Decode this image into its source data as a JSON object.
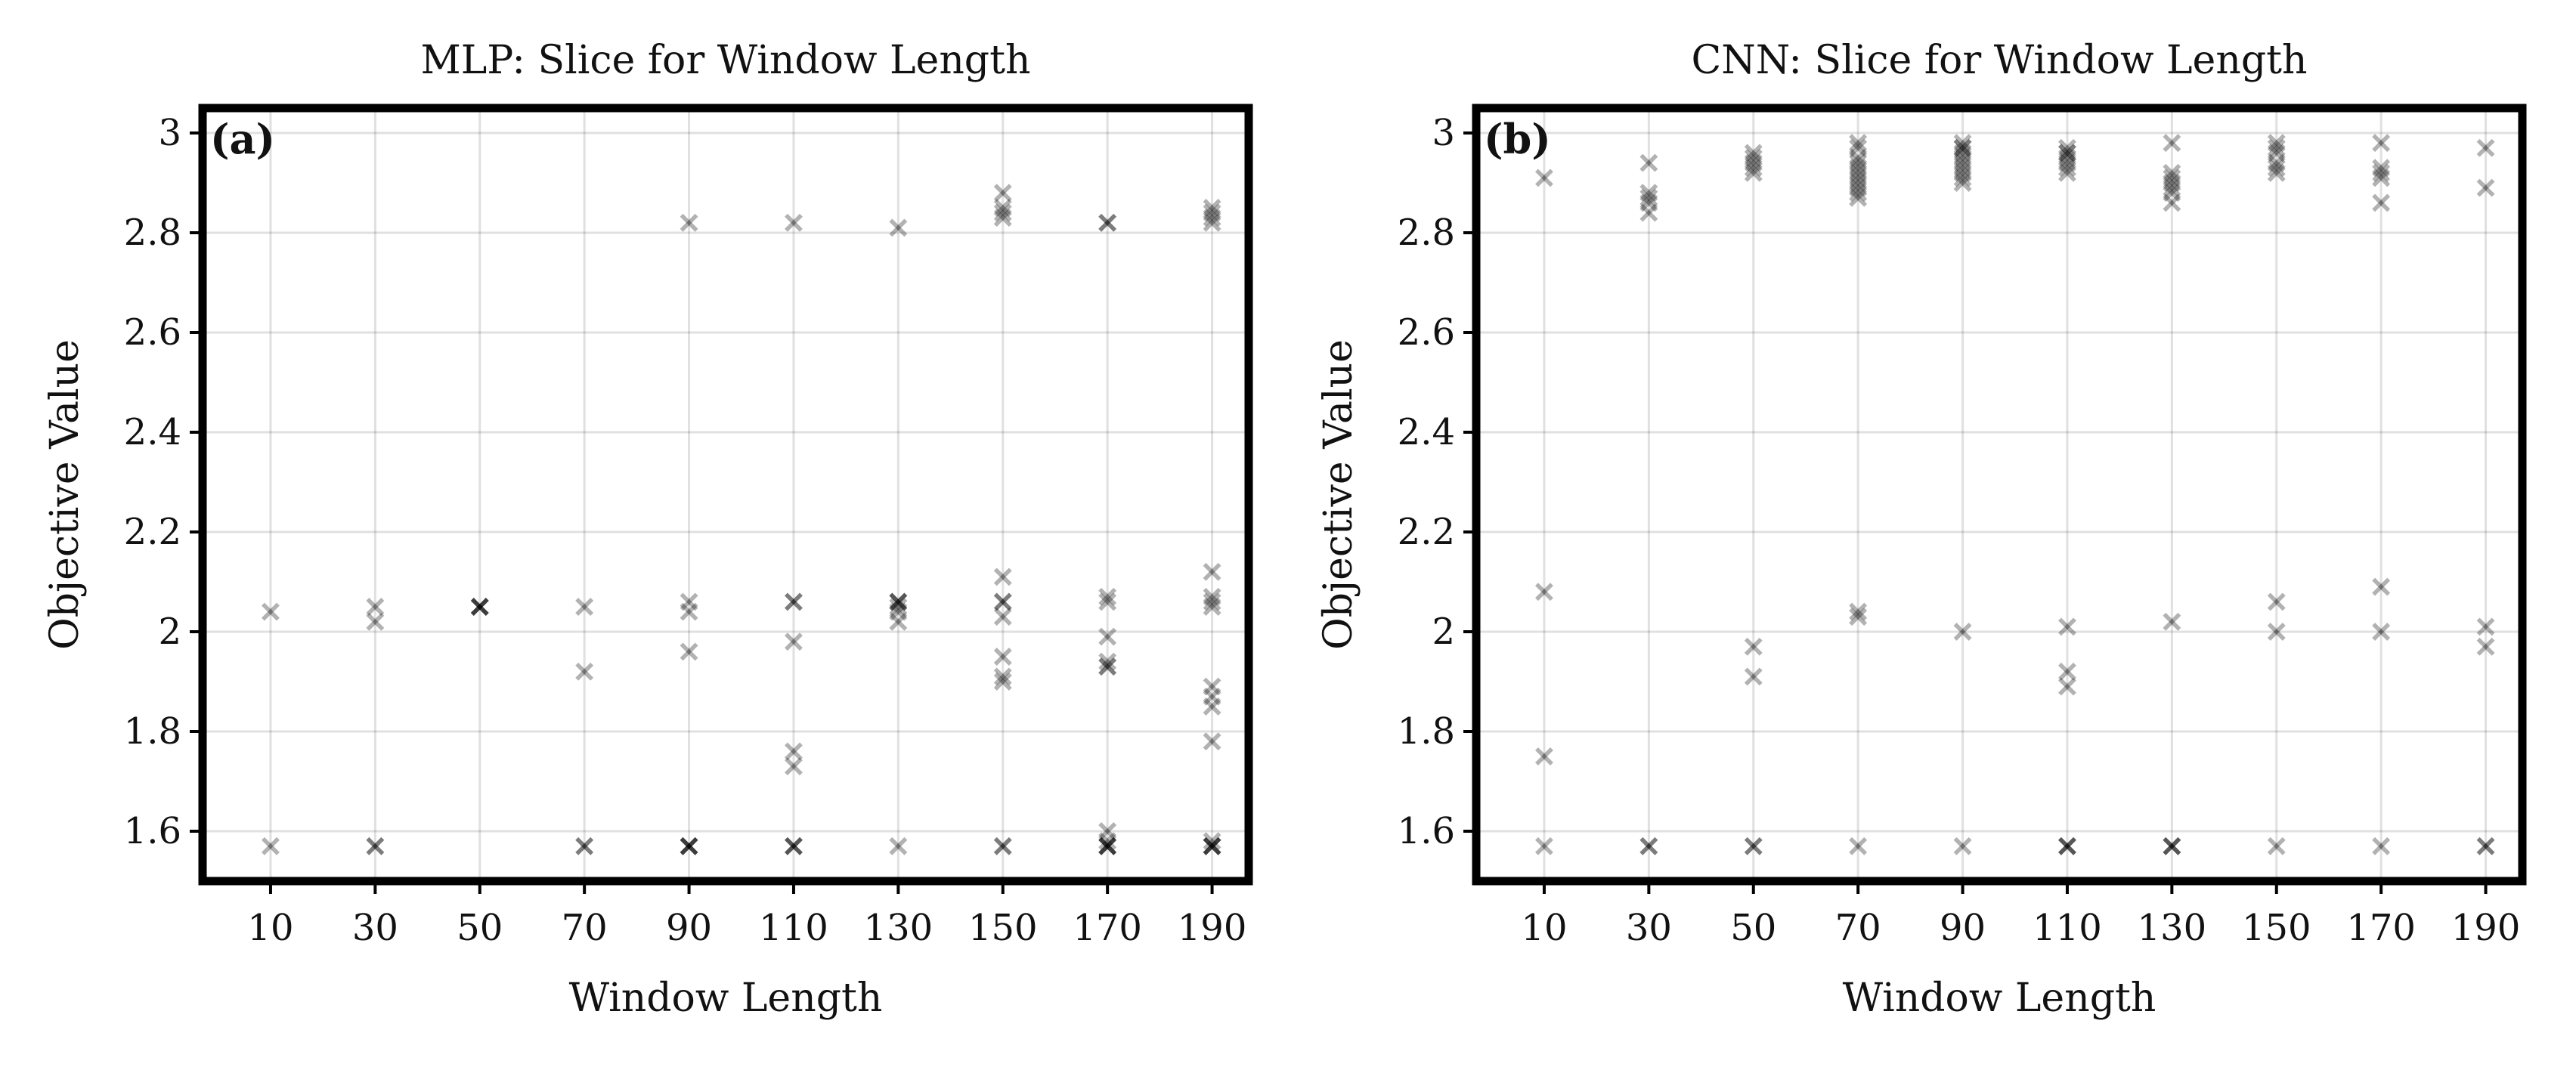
{
  "chart_data": [
    {
      "type": "scatter",
      "panel_label": "(a)",
      "title": "MLP: Slice for Window Length",
      "xlabel": "Window Length",
      "ylabel": "Objective Value",
      "x_ticks": [
        10,
        30,
        50,
        70,
        90,
        110,
        130,
        150,
        170,
        190
      ],
      "y_ticks": [
        1.6,
        1.8,
        2.0,
        2.2,
        2.4,
        2.6,
        2.8,
        3.0
      ],
      "xlim": [
        -3,
        197
      ],
      "ylim": [
        1.5,
        3.05
      ],
      "grid": true,
      "marker": "x",
      "color": "#000000",
      "marker_alpha": 0.3,
      "points": [
        [
          10,
          2.04
        ],
        [
          10,
          1.57
        ],
        [
          30,
          2.05
        ],
        [
          30,
          2.02
        ],
        [
          30,
          1.57
        ],
        [
          30,
          1.57
        ],
        [
          50,
          2.05
        ],
        [
          50,
          2.05
        ],
        [
          50,
          2.05
        ],
        [
          50,
          2.05
        ],
        [
          70,
          2.05
        ],
        [
          70,
          1.92
        ],
        [
          70,
          1.57
        ],
        [
          70,
          1.57
        ],
        [
          90,
          2.82
        ],
        [
          90,
          2.06
        ],
        [
          90,
          2.04
        ],
        [
          90,
          1.96
        ],
        [
          90,
          1.57
        ],
        [
          90,
          1.57
        ],
        [
          90,
          1.57
        ],
        [
          90,
          1.57
        ],
        [
          110,
          2.82
        ],
        [
          110,
          2.06
        ],
        [
          110,
          2.06
        ],
        [
          110,
          1.98
        ],
        [
          110,
          1.76
        ],
        [
          110,
          1.73
        ],
        [
          110,
          1.57
        ],
        [
          110,
          1.57
        ],
        [
          110,
          1.57
        ],
        [
          130,
          2.81
        ],
        [
          130,
          2.06
        ],
        [
          130,
          2.06
        ],
        [
          130,
          2.06
        ],
        [
          130,
          2.05
        ],
        [
          130,
          2.04
        ],
        [
          130,
          2.02
        ],
        [
          130,
          1.57
        ],
        [
          150,
          2.88
        ],
        [
          150,
          2.85
        ],
        [
          150,
          2.84
        ],
        [
          150,
          2.83
        ],
        [
          150,
          2.11
        ],
        [
          150,
          2.06
        ],
        [
          150,
          2.06
        ],
        [
          150,
          2.03
        ],
        [
          150,
          1.95
        ],
        [
          150,
          1.91
        ],
        [
          150,
          1.9
        ],
        [
          150,
          1.57
        ],
        [
          150,
          1.57
        ],
        [
          170,
          2.82
        ],
        [
          170,
          2.82
        ],
        [
          170,
          2.07
        ],
        [
          170,
          2.06
        ],
        [
          170,
          1.99
        ],
        [
          170,
          1.94
        ],
        [
          170,
          1.93
        ],
        [
          170,
          1.93
        ],
        [
          170,
          1.6
        ],
        [
          170,
          1.58
        ],
        [
          170,
          1.57
        ],
        [
          170,
          1.57
        ],
        [
          170,
          1.57
        ],
        [
          170,
          1.57
        ],
        [
          190,
          2.85
        ],
        [
          190,
          2.84
        ],
        [
          190,
          2.83
        ],
        [
          190,
          2.82
        ],
        [
          190,
          2.12
        ],
        [
          190,
          2.07
        ],
        [
          190,
          2.06
        ],
        [
          190,
          2.05
        ],
        [
          190,
          1.89
        ],
        [
          190,
          1.87
        ],
        [
          190,
          1.85
        ],
        [
          190,
          1.78
        ],
        [
          190,
          1.58
        ],
        [
          190,
          1.57
        ],
        [
          190,
          1.57
        ],
        [
          190,
          1.57
        ],
        [
          190,
          1.57
        ]
      ]
    },
    {
      "type": "scatter",
      "panel_label": "(b)",
      "title": "CNN: Slice for Window Length",
      "xlabel": "Window Length",
      "ylabel": "Objective Value",
      "x_ticks": [
        10,
        30,
        50,
        70,
        90,
        110,
        130,
        150,
        170,
        190
      ],
      "y_ticks": [
        1.6,
        1.8,
        2.0,
        2.2,
        2.4,
        2.6,
        2.8,
        3.0
      ],
      "xlim": [
        -3,
        197
      ],
      "ylim": [
        1.5,
        3.05
      ],
      "grid": true,
      "marker": "x",
      "color": "#000000",
      "marker_alpha": 0.3,
      "points": [
        [
          10,
          2.91
        ],
        [
          10,
          2.08
        ],
        [
          10,
          1.75
        ],
        [
          10,
          1.57
        ],
        [
          30,
          2.94
        ],
        [
          30,
          2.88
        ],
        [
          30,
          2.87
        ],
        [
          30,
          2.86
        ],
        [
          30,
          2.84
        ],
        [
          30,
          1.57
        ],
        [
          30,
          1.57
        ],
        [
          50,
          2.96
        ],
        [
          50,
          2.95
        ],
        [
          50,
          2.94
        ],
        [
          50,
          2.93
        ],
        [
          50,
          2.92
        ],
        [
          50,
          1.97
        ],
        [
          50,
          1.91
        ],
        [
          50,
          1.57
        ],
        [
          50,
          1.57
        ],
        [
          70,
          2.98
        ],
        [
          70,
          2.97
        ],
        [
          70,
          2.95
        ],
        [
          70,
          2.94
        ],
        [
          70,
          2.93
        ],
        [
          70,
          2.92
        ],
        [
          70,
          2.91
        ],
        [
          70,
          2.9
        ],
        [
          70,
          2.89
        ],
        [
          70,
          2.88
        ],
        [
          70,
          2.87
        ],
        [
          70,
          2.04
        ],
        [
          70,
          2.03
        ],
        [
          70,
          1.57
        ],
        [
          90,
          2.98
        ],
        [
          90,
          2.97
        ],
        [
          90,
          2.97
        ],
        [
          90,
          2.96
        ],
        [
          90,
          2.95
        ],
        [
          90,
          2.94
        ],
        [
          90,
          2.93
        ],
        [
          90,
          2.92
        ],
        [
          90,
          2.91
        ],
        [
          90,
          2.9
        ],
        [
          90,
          2.0
        ],
        [
          90,
          1.57
        ],
        [
          110,
          2.97
        ],
        [
          110,
          2.96
        ],
        [
          110,
          2.96
        ],
        [
          110,
          2.95
        ],
        [
          110,
          2.94
        ],
        [
          110,
          2.93
        ],
        [
          110,
          2.92
        ],
        [
          110,
          2.01
        ],
        [
          110,
          1.92
        ],
        [
          110,
          1.89
        ],
        [
          110,
          1.57
        ],
        [
          110,
          1.57
        ],
        [
          110,
          1.57
        ],
        [
          130,
          2.98
        ],
        [
          130,
          2.92
        ],
        [
          130,
          2.91
        ],
        [
          130,
          2.9
        ],
        [
          130,
          2.89
        ],
        [
          130,
          2.88
        ],
        [
          130,
          2.86
        ],
        [
          130,
          2.02
        ],
        [
          130,
          1.57
        ],
        [
          130,
          1.57
        ],
        [
          130,
          1.57
        ],
        [
          150,
          2.98
        ],
        [
          150,
          2.97
        ],
        [
          150,
          2.96
        ],
        [
          150,
          2.94
        ],
        [
          150,
          2.93
        ],
        [
          150,
          2.92
        ],
        [
          150,
          2.06
        ],
        [
          150,
          2.0
        ],
        [
          150,
          1.57
        ],
        [
          170,
          2.98
        ],
        [
          170,
          2.93
        ],
        [
          170,
          2.92
        ],
        [
          170,
          2.91
        ],
        [
          170,
          2.86
        ],
        [
          170,
          2.09
        ],
        [
          170,
          2.0
        ],
        [
          170,
          1.57
        ],
        [
          190,
          2.97
        ],
        [
          190,
          2.89
        ],
        [
          190,
          2.01
        ],
        [
          190,
          1.97
        ],
        [
          190,
          1.57
        ],
        [
          190,
          1.57
        ]
      ]
    }
  ]
}
